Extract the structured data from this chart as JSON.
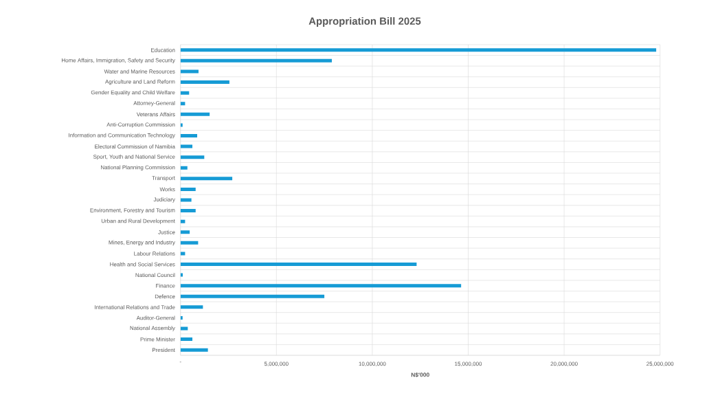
{
  "chart_data": {
    "type": "bar",
    "orientation": "horizontal",
    "title": "Appropriation Bill 2025",
    "xlabel": "N$'000",
    "categories": [
      "Education",
      "Home Affairs, Immigration, Safety and Security",
      "Water and Marine Resources",
      "Agriculture and Land Reform",
      "Gender Equality and Child Welfare",
      "Attorney-General",
      "Veterans Affairs",
      "Anti-Corruption Commission",
      "Information and Communication Technology",
      "Electoral Commission of Namibia",
      "Sport, Youth and National Service",
      "National Planning Commission",
      "Transport",
      "Works",
      "Judiciary",
      "Environment, Forestry and Tourism",
      "Urban and Rural Development",
      "Justice",
      "Mines, Energy and Industry",
      "Labour Relations",
      "Health and Social Services",
      "National Council",
      "Finance",
      "Defence",
      "International Relations and Trade",
      "Auditor-General",
      "National Assembly",
      "Prime Minister",
      "President"
    ],
    "values": [
      24800000,
      7890000,
      940000,
      2550000,
      450000,
      240000,
      1520000,
      110000,
      870000,
      620000,
      1240000,
      360000,
      2700000,
      790000,
      570000,
      790000,
      240000,
      480000,
      920000,
      240000,
      12310000,
      120000,
      14630000,
      7500000,
      1170000,
      110000,
      380000,
      620000,
      1430000
    ],
    "color": "#169bd5",
    "xlim": [
      0,
      25000000
    ],
    "xticks": [
      {
        "value": 0,
        "label": "-"
      },
      {
        "value": 5000000,
        "label": "5,000,000"
      },
      {
        "value": 10000000,
        "label": "10,000,000"
      },
      {
        "value": 15000000,
        "label": "15,000,000"
      },
      {
        "value": 20000000,
        "label": "20,000,000"
      },
      {
        "value": 25000000,
        "label": "25,000,000"
      }
    ],
    "grid": true
  }
}
